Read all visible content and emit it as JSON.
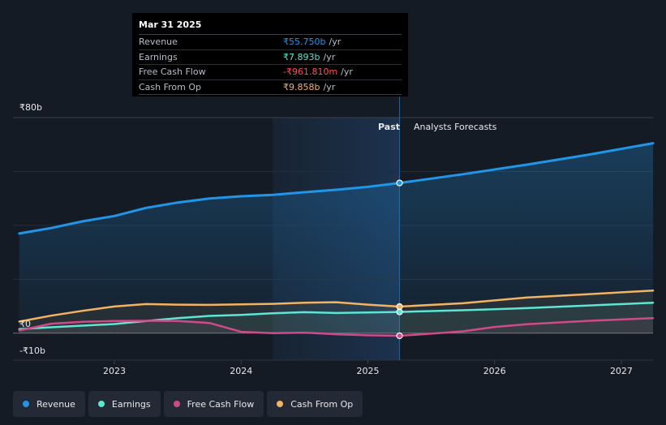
{
  "tooltip": {
    "date": "Mar 31 2025",
    "rows": [
      {
        "label": "Revenue",
        "value": "₹55.750b",
        "unit": "/yr",
        "color": "#2196e8"
      },
      {
        "label": "Earnings",
        "value": "₹7.893b",
        "unit": "/yr",
        "color": "#5ce6d3"
      },
      {
        "label": "Free Cash Flow",
        "value": "-₹961.810m",
        "unit": "/yr",
        "color": "#ff4d5e"
      },
      {
        "label": "Cash From Op",
        "value": "₹9.858b",
        "unit": "/yr",
        "color": "#f3b361"
      }
    ]
  },
  "labels": {
    "past": "Past",
    "forecast": "Analysts Forecasts"
  },
  "chart_data": {
    "type": "area",
    "y_unit_labels": [
      "₹80b",
      "₹0",
      "-₹10b"
    ],
    "ylim": [
      -10,
      80
    ],
    "xlim": [
      2022.2,
      2027.25
    ],
    "x_ticks": [
      {
        "value": 2023,
        "label": "2023"
      },
      {
        "value": 2024,
        "label": "2024"
      },
      {
        "value": 2025,
        "label": "2025"
      },
      {
        "value": 2026,
        "label": "2026"
      },
      {
        "value": 2027,
        "label": "2027"
      }
    ],
    "past_start": 2024.25,
    "today": 2025.25,
    "series": [
      {
        "name": "Revenue",
        "color": "#2196e8",
        "points": [
          [
            2022.25,
            37
          ],
          [
            2022.5,
            39
          ],
          [
            2022.75,
            41.5
          ],
          [
            2023.0,
            43.5
          ],
          [
            2023.25,
            46.5
          ],
          [
            2023.5,
            48.5
          ],
          [
            2023.75,
            50
          ],
          [
            2024.0,
            50.8
          ],
          [
            2024.25,
            51.3
          ],
          [
            2024.5,
            52.3
          ],
          [
            2024.75,
            53.2
          ],
          [
            2025.0,
            54.3
          ],
          [
            2025.25,
            55.75
          ],
          [
            2025.75,
            59
          ],
          [
            2026.25,
            62.5
          ],
          [
            2026.75,
            66.3
          ],
          [
            2027.25,
            70.5
          ]
        ]
      },
      {
        "name": "Earnings",
        "color": "#5ce6d3",
        "points": [
          [
            2022.25,
            1.5
          ],
          [
            2022.5,
            2.2
          ],
          [
            2022.75,
            2.8
          ],
          [
            2023.0,
            3.4
          ],
          [
            2023.25,
            4.5
          ],
          [
            2023.5,
            5.6
          ],
          [
            2023.75,
            6.4
          ],
          [
            2024.0,
            6.8
          ],
          [
            2024.25,
            7.4
          ],
          [
            2024.5,
            7.8
          ],
          [
            2024.75,
            7.5
          ],
          [
            2025.0,
            7.7
          ],
          [
            2025.25,
            7.893
          ],
          [
            2025.75,
            8.5
          ],
          [
            2026.25,
            9.3
          ],
          [
            2026.75,
            10.3
          ],
          [
            2027.25,
            11.3
          ]
        ]
      },
      {
        "name": "Free Cash Flow",
        "color": "#d04a8a",
        "points": [
          [
            2022.25,
            1.0
          ],
          [
            2022.5,
            3.5
          ],
          [
            2022.75,
            4.2
          ],
          [
            2023.0,
            4.5
          ],
          [
            2023.25,
            4.6
          ],
          [
            2023.5,
            4.5
          ],
          [
            2023.75,
            3.8
          ],
          [
            2024.0,
            0.5
          ],
          [
            2024.25,
            0.0
          ],
          [
            2024.5,
            0.2
          ],
          [
            2024.75,
            -0.4
          ],
          [
            2025.0,
            -0.8
          ],
          [
            2025.25,
            -0.96
          ],
          [
            2025.5,
            -0.2
          ],
          [
            2025.75,
            0.7
          ],
          [
            2026.0,
            2.3
          ],
          [
            2026.25,
            3.3
          ],
          [
            2026.75,
            4.6
          ],
          [
            2027.25,
            5.6
          ]
        ]
      },
      {
        "name": "Cash From Op",
        "color": "#f3b361",
        "points": [
          [
            2022.25,
            4.3
          ],
          [
            2022.5,
            6.5
          ],
          [
            2022.75,
            8.3
          ],
          [
            2023.0,
            9.9
          ],
          [
            2023.25,
            10.8
          ],
          [
            2023.5,
            10.6
          ],
          [
            2023.75,
            10.5
          ],
          [
            2024.0,
            10.7
          ],
          [
            2024.25,
            10.9
          ],
          [
            2024.5,
            11.3
          ],
          [
            2024.75,
            11.5
          ],
          [
            2025.0,
            10.6
          ],
          [
            2025.25,
            9.858
          ],
          [
            2025.75,
            11.1
          ],
          [
            2026.25,
            13.2
          ],
          [
            2026.75,
            14.5
          ],
          [
            2027.25,
            15.8
          ]
        ]
      }
    ]
  },
  "legend": [
    {
      "label": "Revenue",
      "color": "#2196e8"
    },
    {
      "label": "Earnings",
      "color": "#5ce6d3"
    },
    {
      "label": "Free Cash Flow",
      "color": "#d04a8a"
    },
    {
      "label": "Cash From Op",
      "color": "#f3b361"
    }
  ]
}
